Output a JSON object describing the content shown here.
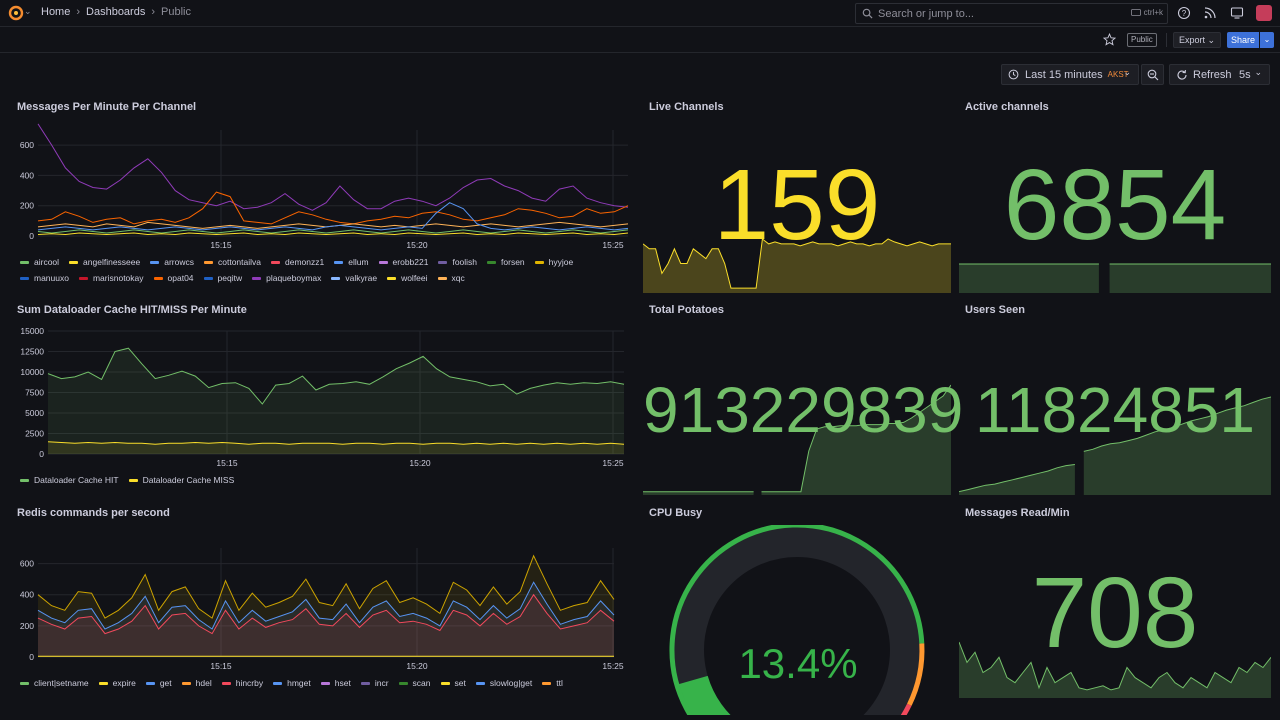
{
  "breadcrumb": {
    "home": "Home",
    "dashboards": "Dashboards",
    "current": "Public"
  },
  "search": {
    "placeholder": "Search or jump to...",
    "shortcut": "ctrl+k"
  },
  "toolbar": {
    "public_badge": "Public",
    "export_label": "Export",
    "share_label": "Share"
  },
  "time_picker": {
    "label": "Last 15 minutes",
    "timezone": "AKST",
    "refresh_label": "Refresh",
    "refresh_interval": "5s"
  },
  "colors": {
    "green": "#73bf69",
    "yellow": "#fade2a",
    "red": "#f2495c",
    "orange": "#ff9830",
    "blue": "#5794f2",
    "purple": "#b877d9"
  },
  "panels": {
    "messages": {
      "title": "Messages Per Minute Per Channel"
    },
    "live": {
      "title": "Live Channels",
      "value": "159"
    },
    "active": {
      "title": "Active channels",
      "value": "6854"
    },
    "dataloader": {
      "title": "Sum Dataloader Cache HIT/MISS Per Minute"
    },
    "potatoes": {
      "title": "Total Potatoes",
      "value": "913229839"
    },
    "users": {
      "title": "Users Seen",
      "value": "11824851"
    },
    "redis": {
      "title": "Redis commands per second"
    },
    "cpu": {
      "title": "CPU Busy",
      "value": "13.4%",
      "fraction": 0.134
    },
    "read": {
      "title": "Messages Read/Min",
      "value": "708"
    }
  },
  "chart_data": [
    {
      "type": "line",
      "panel": "messages",
      "x_ticks": [
        "15:15",
        "15:20",
        "15:25"
      ],
      "y_ticks": [
        0,
        200,
        400,
        600
      ],
      "ylim": [
        0,
        700
      ],
      "legend": [
        "aircool",
        "angelfinesseee",
        "arrowcs",
        "cottontailva",
        "demonzz1",
        "ellum",
        "erobb221",
        "foolish",
        "forsen",
        "hyyjoe",
        "manuuxo",
        "marisnotokay",
        "opat04",
        "peqitw",
        "plaqueboymax",
        "valkyrae",
        "wolfeei",
        "xqc"
      ],
      "legend_colors": [
        "#73bf69",
        "#fade2a",
        "#5794f2",
        "#ff9830",
        "#f2495c",
        "#5794f2",
        "#b877d9",
        "#705da0",
        "#37872d",
        "#e0b400",
        "#1f60c4",
        "#c4162a",
        "#fa6400",
        "#1f60c4",
        "#8f3bb8",
        "#8ab8ff",
        "#fade2a",
        "#ffb357"
      ],
      "series": [
        {
          "name": "plaqueboymax",
          "color": "#8f3bb8",
          "values": [
            740,
            600,
            450,
            360,
            320,
            310,
            370,
            450,
            510,
            420,
            300,
            240,
            220,
            200,
            230,
            180,
            190,
            220,
            280,
            210,
            170,
            220,
            330,
            240,
            180,
            180,
            230,
            250,
            230,
            200,
            250,
            320,
            370,
            380,
            330,
            300,
            250,
            230,
            310,
            330,
            250,
            220,
            200,
            190
          ]
        },
        {
          "name": "opat04",
          "color": "#fa6400",
          "values": [
            100,
            110,
            160,
            130,
            90,
            110,
            120,
            80,
            100,
            110,
            90,
            120,
            180,
            290,
            260,
            100,
            90,
            80,
            120,
            160,
            140,
            110,
            90,
            80,
            100,
            110,
            130,
            120,
            150,
            160,
            140,
            110,
            100,
            120,
            140,
            180,
            170,
            150,
            120,
            130,
            180,
            150,
            160,
            200
          ]
        },
        {
          "name": "xqc",
          "color": "#ffb357",
          "values": [
            60,
            70,
            80,
            70,
            60,
            80,
            70,
            60,
            90,
            80,
            70,
            60,
            50,
            60,
            70,
            60,
            50,
            60,
            70,
            80,
            70,
            60,
            70,
            80,
            70,
            60,
            70,
            60,
            70,
            80,
            70,
            60,
            70,
            80,
            70,
            60,
            70,
            80,
            90,
            80,
            70,
            60,
            70,
            80
          ]
        },
        {
          "name": "arrowcs",
          "color": "#5794f2",
          "values": [
            40,
            50,
            60,
            50,
            40,
            50,
            60,
            50,
            40,
            50,
            60,
            50,
            40,
            50,
            60,
            50,
            40,
            50,
            60,
            50,
            40,
            60,
            70,
            60,
            50,
            40,
            50,
            60,
            50,
            150,
            220,
            180,
            80,
            50,
            40,
            50,
            60,
            50,
            40,
            50,
            60,
            50,
            40,
            50
          ]
        },
        {
          "name": "aircool",
          "color": "#73bf69",
          "values": [
            30,
            20,
            30,
            40,
            30,
            20,
            30,
            40,
            30,
            20,
            30,
            40,
            30,
            20,
            30,
            40,
            30,
            20,
            30,
            40,
            30,
            20,
            30,
            40,
            30,
            20,
            30,
            40,
            30,
            20,
            30,
            40,
            30,
            20,
            30,
            40,
            30,
            20,
            30,
            40,
            30,
            20,
            30,
            40
          ]
        },
        {
          "name": "wolfeei",
          "color": "#fade2a",
          "values": [
            10,
            15,
            10,
            20,
            15,
            10,
            15,
            20,
            10,
            15,
            10,
            20,
            15,
            10,
            15,
            20,
            10,
            15,
            10,
            20,
            15,
            10,
            15,
            20,
            10,
            15,
            10,
            20,
            15,
            10,
            15,
            20,
            10,
            15,
            10,
            20,
            15,
            10,
            15,
            20,
            10,
            15,
            10,
            20
          ]
        }
      ]
    },
    {
      "type": "line",
      "panel": "dataloader",
      "x_ticks": [
        "15:15",
        "15:20",
        "15:25"
      ],
      "y_ticks": [
        0,
        2500,
        5000,
        7500,
        10000,
        12500,
        15000
      ],
      "ylim": [
        0,
        15000
      ],
      "legend": [
        "Dataloader Cache HIT",
        "Dataloader Cache MISS"
      ],
      "series": [
        {
          "name": "Dataloader Cache HIT",
          "color": "#73bf69",
          "values": [
            9800,
            9200,
            9400,
            10000,
            9100,
            12500,
            12900,
            11000,
            9200,
            9600,
            10100,
            9500,
            8100,
            8600,
            8700,
            8000,
            6100,
            8400,
            8600,
            9500,
            7800,
            8500,
            8600,
            8800,
            8500,
            9400,
            10400,
            11100,
            11900,
            10400,
            9400,
            9100,
            8800,
            8300,
            8500,
            7300,
            8000,
            8400,
            8700,
            8500,
            8700,
            8600,
            8800,
            8500
          ]
        },
        {
          "name": "Dataloader Cache MISS",
          "color": "#fade2a",
          "values": [
            1500,
            1400,
            1300,
            1400,
            1300,
            1400,
            1300,
            1300,
            1200,
            1300,
            1300,
            1400,
            1300,
            1400,
            1300,
            1200,
            1300,
            1300,
            1200,
            1300,
            1300,
            1300,
            1200,
            1300,
            1300,
            1200,
            1300,
            1300,
            1200,
            1300,
            1300,
            1200,
            1300,
            1200,
            1300,
            1200,
            1300,
            1200,
            1300,
            1200,
            1300,
            1200,
            1300,
            1200
          ]
        }
      ]
    },
    {
      "type": "area",
      "panel": "redis",
      "x_ticks": [
        "15:15",
        "15:20",
        "15:25"
      ],
      "y_ticks": [
        0,
        200,
        400,
        600
      ],
      "ylim": [
        0,
        700
      ],
      "legend": [
        "client|setname",
        "expire",
        "get",
        "hdel",
        "hincrby",
        "hmget",
        "hset",
        "incr",
        "scan",
        "set",
        "slowlog|get",
        "ttl"
      ],
      "legend_colors": [
        "#73bf69",
        "#fade2a",
        "#5794f2",
        "#ff9830",
        "#f2495c",
        "#5794f2",
        "#b877d9",
        "#705da0",
        "#37872d",
        "#fade2a",
        "#5794f2",
        "#ff9830"
      ],
      "series": [
        {
          "name": "expire",
          "color": "#cca300",
          "values": [
            400,
            330,
            300,
            420,
            410,
            250,
            300,
            380,
            530,
            300,
            420,
            450,
            310,
            250,
            490,
            300,
            410,
            320,
            350,
            390,
            500,
            350,
            330,
            470,
            310,
            440,
            490,
            350,
            380,
            340,
            280,
            480,
            430,
            330,
            450,
            340,
            420,
            650,
            470,
            300,
            330,
            350,
            490,
            370
          ]
        },
        {
          "name": "get",
          "color": "#5794f2",
          "values": [
            300,
            250,
            220,
            300,
            310,
            180,
            220,
            280,
            390,
            220,
            320,
            330,
            240,
            180,
            360,
            220,
            300,
            230,
            260,
            290,
            370,
            250,
            240,
            340,
            220,
            320,
            360,
            260,
            280,
            250,
            200,
            360,
            320,
            240,
            330,
            250,
            310,
            480,
            340,
            210,
            240,
            260,
            360,
            270
          ]
        },
        {
          "name": "hincrby",
          "color": "#f2495c",
          "values": [
            250,
            210,
            180,
            250,
            260,
            150,
            180,
            230,
            330,
            180,
            270,
            280,
            200,
            150,
            300,
            180,
            250,
            190,
            220,
            240,
            310,
            210,
            200,
            280,
            190,
            270,
            300,
            220,
            230,
            210,
            170,
            300,
            270,
            200,
            280,
            210,
            260,
            400,
            280,
            180,
            200,
            220,
            300,
            230
          ]
        },
        {
          "name": "set",
          "color": "#fade2a",
          "values": [
            5,
            5,
            5,
            5,
            5,
            5,
            5,
            5,
            5,
            5,
            5,
            5,
            5,
            5,
            5,
            5,
            5,
            5,
            5,
            5,
            5,
            5,
            5,
            5,
            5,
            5,
            5,
            5,
            5,
            5,
            5,
            5,
            5,
            5,
            5,
            5,
            5,
            5,
            5,
            5,
            5,
            5,
            5,
            5
          ]
        }
      ]
    },
    {
      "type": "area",
      "panel": "live",
      "color": "#fade2a",
      "values": [
        50,
        45,
        45,
        20,
        30,
        45,
        30,
        30,
        45,
        40,
        35,
        45,
        45,
        30,
        5,
        5,
        5,
        5,
        5,
        55,
        50,
        52,
        50,
        50,
        50,
        48,
        50,
        52,
        50,
        50,
        50,
        48,
        50,
        52,
        50,
        50,
        48,
        50,
        50,
        55,
        52,
        50,
        48,
        50,
        52,
        50,
        48,
        50,
        50,
        50
      ]
    },
    {
      "type": "area",
      "panel": "active",
      "color": "#73bf69",
      "values": [
        30,
        30,
        30,
        30,
        30,
        30,
        30,
        30,
        30,
        30,
        30,
        30,
        30,
        30,
        30,
        30,
        30,
        30,
        30,
        30,
        30,
        30,
        30,
        30,
        30,
        30,
        30,
        30,
        30,
        30
      ]
    },
    {
      "type": "area",
      "panel": "potatoes",
      "color": "#73bf69",
      "values": [
        3,
        3,
        3,
        3,
        3,
        3,
        3,
        3,
        3,
        3,
        3,
        3,
        3,
        3,
        3,
        3,
        3,
        3,
        3,
        3,
        3,
        40,
        60,
        62,
        62,
        63,
        63,
        63,
        64,
        64,
        64,
        65,
        65,
        66,
        70,
        75,
        80,
        85,
        90,
        100
      ]
    },
    {
      "type": "area",
      "panel": "users",
      "color": "#73bf69",
      "values": [
        3,
        5,
        7,
        9,
        10,
        12,
        14,
        16,
        18,
        20,
        22,
        25,
        27,
        28,
        40,
        42,
        45,
        47,
        48,
        50,
        52,
        55,
        58,
        60,
        62,
        65,
        68,
        70,
        72,
        75,
        78,
        80,
        82,
        85,
        88,
        90
      ]
    },
    {
      "type": "area",
      "panel": "read",
      "color": "#73bf69",
      "values": [
        55,
        35,
        45,
        25,
        30,
        40,
        20,
        15,
        25,
        35,
        10,
        30,
        15,
        20,
        25,
        10,
        8,
        10,
        12,
        8,
        10,
        30,
        20,
        15,
        10,
        20,
        25,
        15,
        10,
        20,
        15,
        10,
        25,
        20,
        15,
        30,
        25,
        35,
        30,
        40
      ]
    }
  ]
}
